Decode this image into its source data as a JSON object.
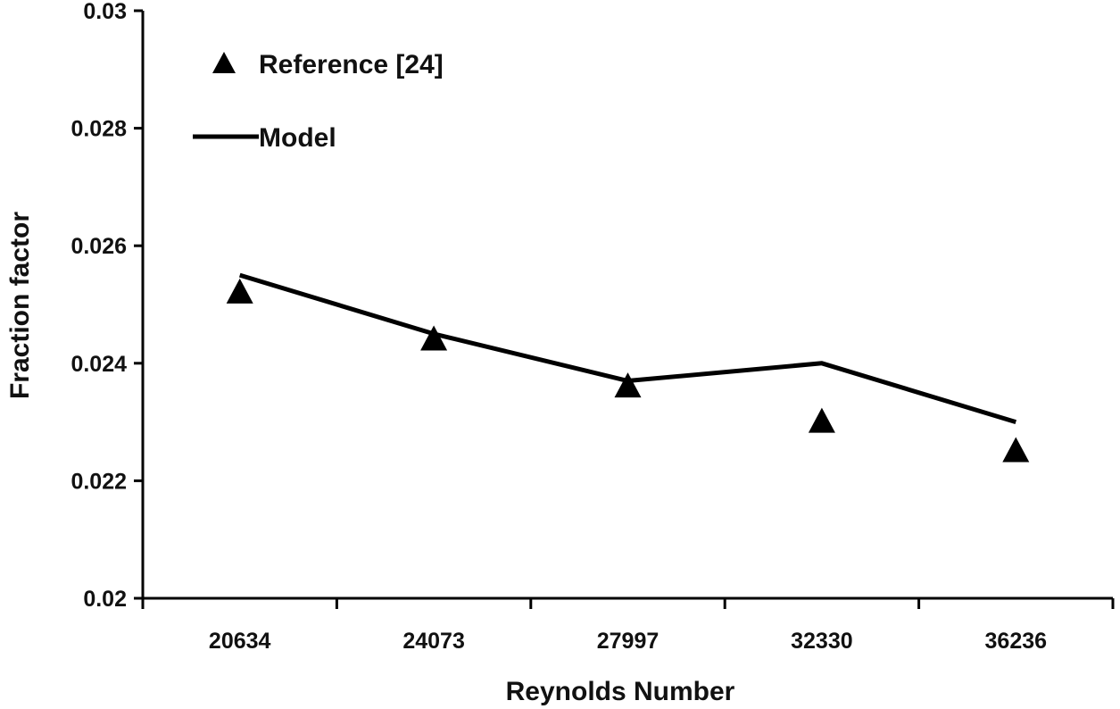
{
  "chart_data": {
    "type": "line",
    "title": "",
    "xlabel": "Reynolds Number",
    "ylabel": "Fraction factor",
    "categories": [
      "20634",
      "24073",
      "27997",
      "32330",
      "36236"
    ],
    "ylim": [
      0.02,
      0.03
    ],
    "yticks": [
      "0.02",
      "0.022",
      "0.024",
      "0.026",
      "0.028",
      "0.03"
    ],
    "grid": false,
    "legend_position": "top-left",
    "series": [
      {
        "name": "Reference [24]",
        "kind": "marker",
        "marker": "triangle",
        "color": "#000000",
        "values": [
          0.0252,
          0.0244,
          0.0236,
          0.023,
          0.0225
        ]
      },
      {
        "name": "Model",
        "kind": "line",
        "color": "#000000",
        "values": [
          0.0255,
          0.0245,
          0.0237,
          0.024,
          0.023
        ]
      }
    ]
  }
}
